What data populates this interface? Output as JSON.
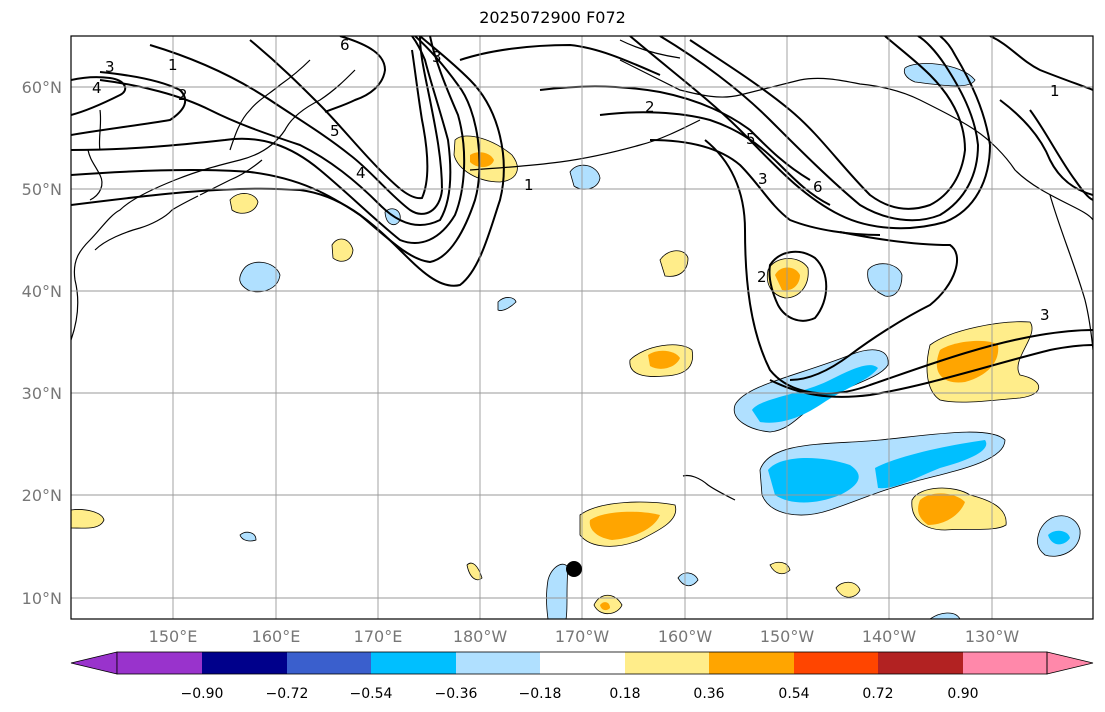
{
  "title": "2025072900 F072",
  "lat_labels": [
    "60°N",
    "50°N",
    "40°N",
    "30°N",
    "20°N",
    "10°N"
  ],
  "lon_labels": [
    "150°E",
    "160°E",
    "170°E",
    "180°W",
    "170°W",
    "160°W",
    "150°W",
    "140°W",
    "130°W"
  ],
  "colorbar": {
    "tick_labels": [
      "−0.90",
      "−0.72",
      "−0.54",
      "−0.36",
      "−0.18",
      "0.18",
      "0.36",
      "0.54",
      "0.72",
      "0.90"
    ],
    "colors": [
      "#9933cc",
      "#00008b",
      "#3a5fcd",
      "#00bfff",
      "#b0e0ff",
      "#ffffff",
      "#ffed8a",
      "#ffa500",
      "#ff4500",
      "#b22222",
      "#ff88aa"
    ]
  },
  "contour_labels": [
    "3",
    "1",
    "4",
    "2",
    "6",
    "3",
    "5",
    "4",
    "1",
    "2",
    "5",
    "3",
    "6",
    "2",
    "3",
    "1"
  ],
  "colors": {
    "light_blue": "#b0e0ff",
    "mid_blue": "#00bfff",
    "light_yellow": "#ffed8a",
    "orange": "#ffa500"
  }
}
